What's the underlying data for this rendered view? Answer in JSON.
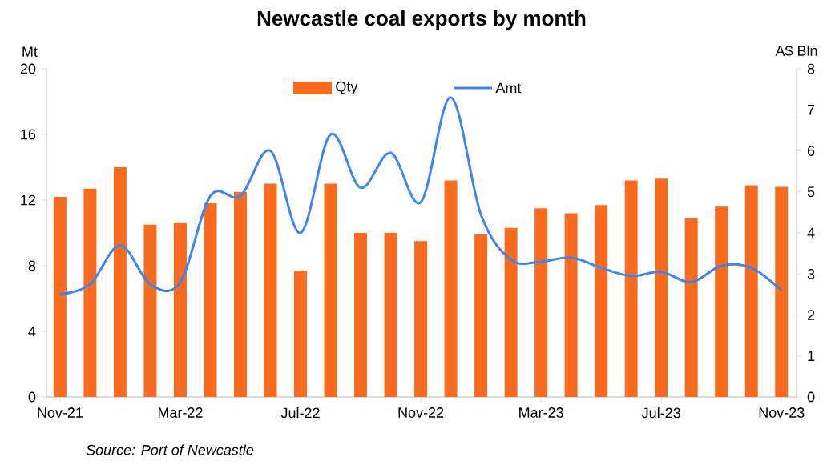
{
  "chart_data": {
    "type": "bar",
    "title": "Newcastle coal exports by month",
    "ylabel": "Mt",
    "y2label": "A$ Bln",
    "categories": [
      "Nov-21",
      null,
      null,
      null,
      "Mar-22",
      null,
      null,
      null,
      "Jul-22",
      null,
      null,
      null,
      "Nov-22",
      null,
      null,
      null,
      "Mar-23",
      null,
      null,
      null,
      "Jul-23",
      null,
      null,
      null,
      "Nov-23"
    ],
    "series": [
      {
        "name": "Qty",
        "color": "#f96b1e",
        "values": [
          12.2,
          12.7,
          14.0,
          10.5,
          10.6,
          11.8,
          12.5,
          13.0,
          7.7,
          13.0,
          10.0,
          10.0,
          9.5,
          13.2,
          9.9,
          10.3,
          11.5,
          11.2,
          11.7,
          13.2,
          13.3,
          10.9,
          11.6,
          12.9,
          12.8
        ]
      },
      {
        "name": "Amt",
        "type": "line",
        "axis": "y2",
        "color": "#3d85f0",
        "values": [
          2.5,
          2.75,
          3.7,
          2.75,
          2.8,
          4.9,
          4.9,
          6.0,
          4.0,
          6.4,
          5.1,
          5.95,
          4.75,
          7.3,
          4.45,
          3.35,
          3.3,
          3.4,
          3.15,
          2.95,
          3.05,
          2.8,
          3.2,
          3.15,
          2.6
        ]
      }
    ],
    "ylim": [
      0,
      20
    ],
    "yticks": [
      0,
      4,
      8,
      12,
      16,
      20
    ],
    "y2lim": [
      0,
      8
    ],
    "y2ticks": [
      0,
      1,
      2,
      3,
      4,
      5,
      6,
      7,
      8
    ],
    "legend": "top",
    "annotations": [
      "Source:  Port of Newcastle"
    ]
  }
}
